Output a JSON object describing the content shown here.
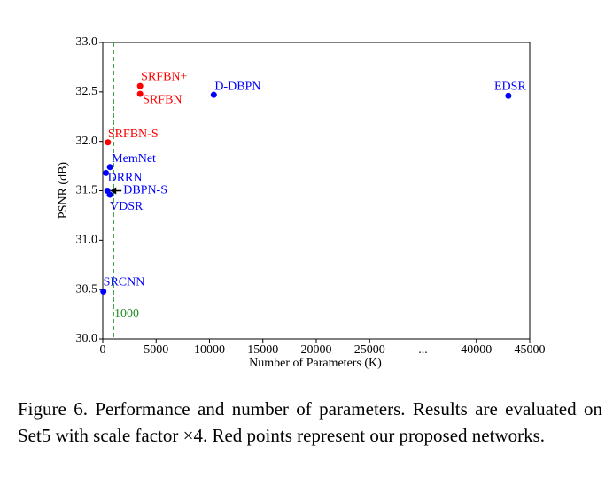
{
  "chart_data": {
    "type": "scatter",
    "xlabel": "Number of Parameters (K)",
    "ylabel": "PSNR (dB)",
    "xlim": [
      0,
      45000
    ],
    "xbreak": [
      30000,
      35000
    ],
    "xticks": [
      0,
      5000,
      10000,
      15000,
      20000,
      25000,
      {
        "value": 30000,
        "label": "..."
      },
      40000,
      45000
    ],
    "ylim": [
      30.0,
      33.0
    ],
    "yticks": [
      {
        "value": 30,
        "label": "30.0"
      },
      30.5,
      {
        "value": 31,
        "label": "31.0"
      },
      31.5,
      {
        "value": 32,
        "label": "32.0"
      },
      32.5,
      {
        "value": 33,
        "label": "33.0"
      }
    ],
    "points": [
      {
        "label": "SRCNN",
        "x": 57,
        "y": 30.48,
        "color": "#0000ff"
      },
      {
        "label": "SRFBN-S",
        "x": 483,
        "y": 31.99,
        "color": "#ff0000"
      },
      {
        "label": "MemNet",
        "x": 677,
        "y": 31.74,
        "color": "#0000ff"
      },
      {
        "label": "DRRN",
        "x": 297,
        "y": 31.68,
        "color": "#0000ff"
      },
      {
        "label": "DBPN-S",
        "x": 432,
        "y": 31.5,
        "color": "#0000ff"
      },
      {
        "label": "VDSR",
        "x": 665,
        "y": 31.46,
        "color": "#0000ff"
      },
      {
        "label": "SRFBN+",
        "x": 3500,
        "y": 32.56,
        "color": "#ff0000"
      },
      {
        "label": "SRFBN",
        "x": 3500,
        "y": 32.48,
        "color": "#ff0000"
      },
      {
        "label": "D-DBPN",
        "x": 10400,
        "y": 32.47,
        "color": "#0000ff"
      },
      {
        "label": "EDSR",
        "x": 43000,
        "y": 32.46,
        "color": "#0000ff"
      }
    ],
    "reference_line": {
      "x": 1000,
      "color": "#228b22"
    }
  },
  "caption": "Figure 6. Performance and number of parameters. Results are evaluated on Set5 with scale factor ×4. Red points represent our proposed networks."
}
